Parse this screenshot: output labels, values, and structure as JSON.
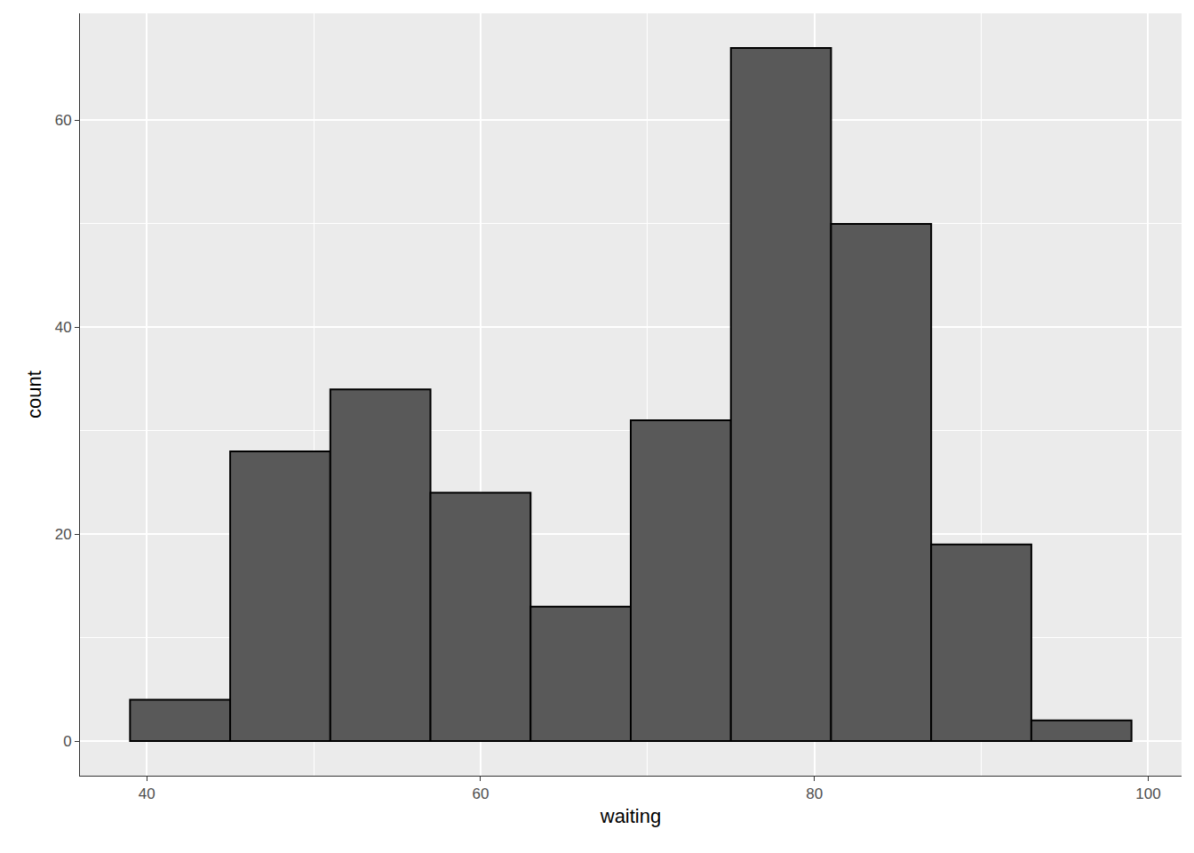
{
  "chart_data": {
    "type": "histogram",
    "bins": [
      39,
      45,
      51,
      57,
      63,
      69,
      75,
      81,
      87,
      93,
      99
    ],
    "values": [
      4,
      28,
      34,
      24,
      13,
      31,
      67,
      50,
      19,
      2
    ],
    "color": "#595959",
    "x_label": "waiting",
    "y_label": "count",
    "xlim": [
      36,
      102
    ],
    "xticks": [
      40,
      60,
      80,
      100
    ],
    "ylim": [
      -3.35,
      70.35
    ],
    "yticks": [
      0,
      20,
      40,
      60
    ],
    "grid": true
  }
}
